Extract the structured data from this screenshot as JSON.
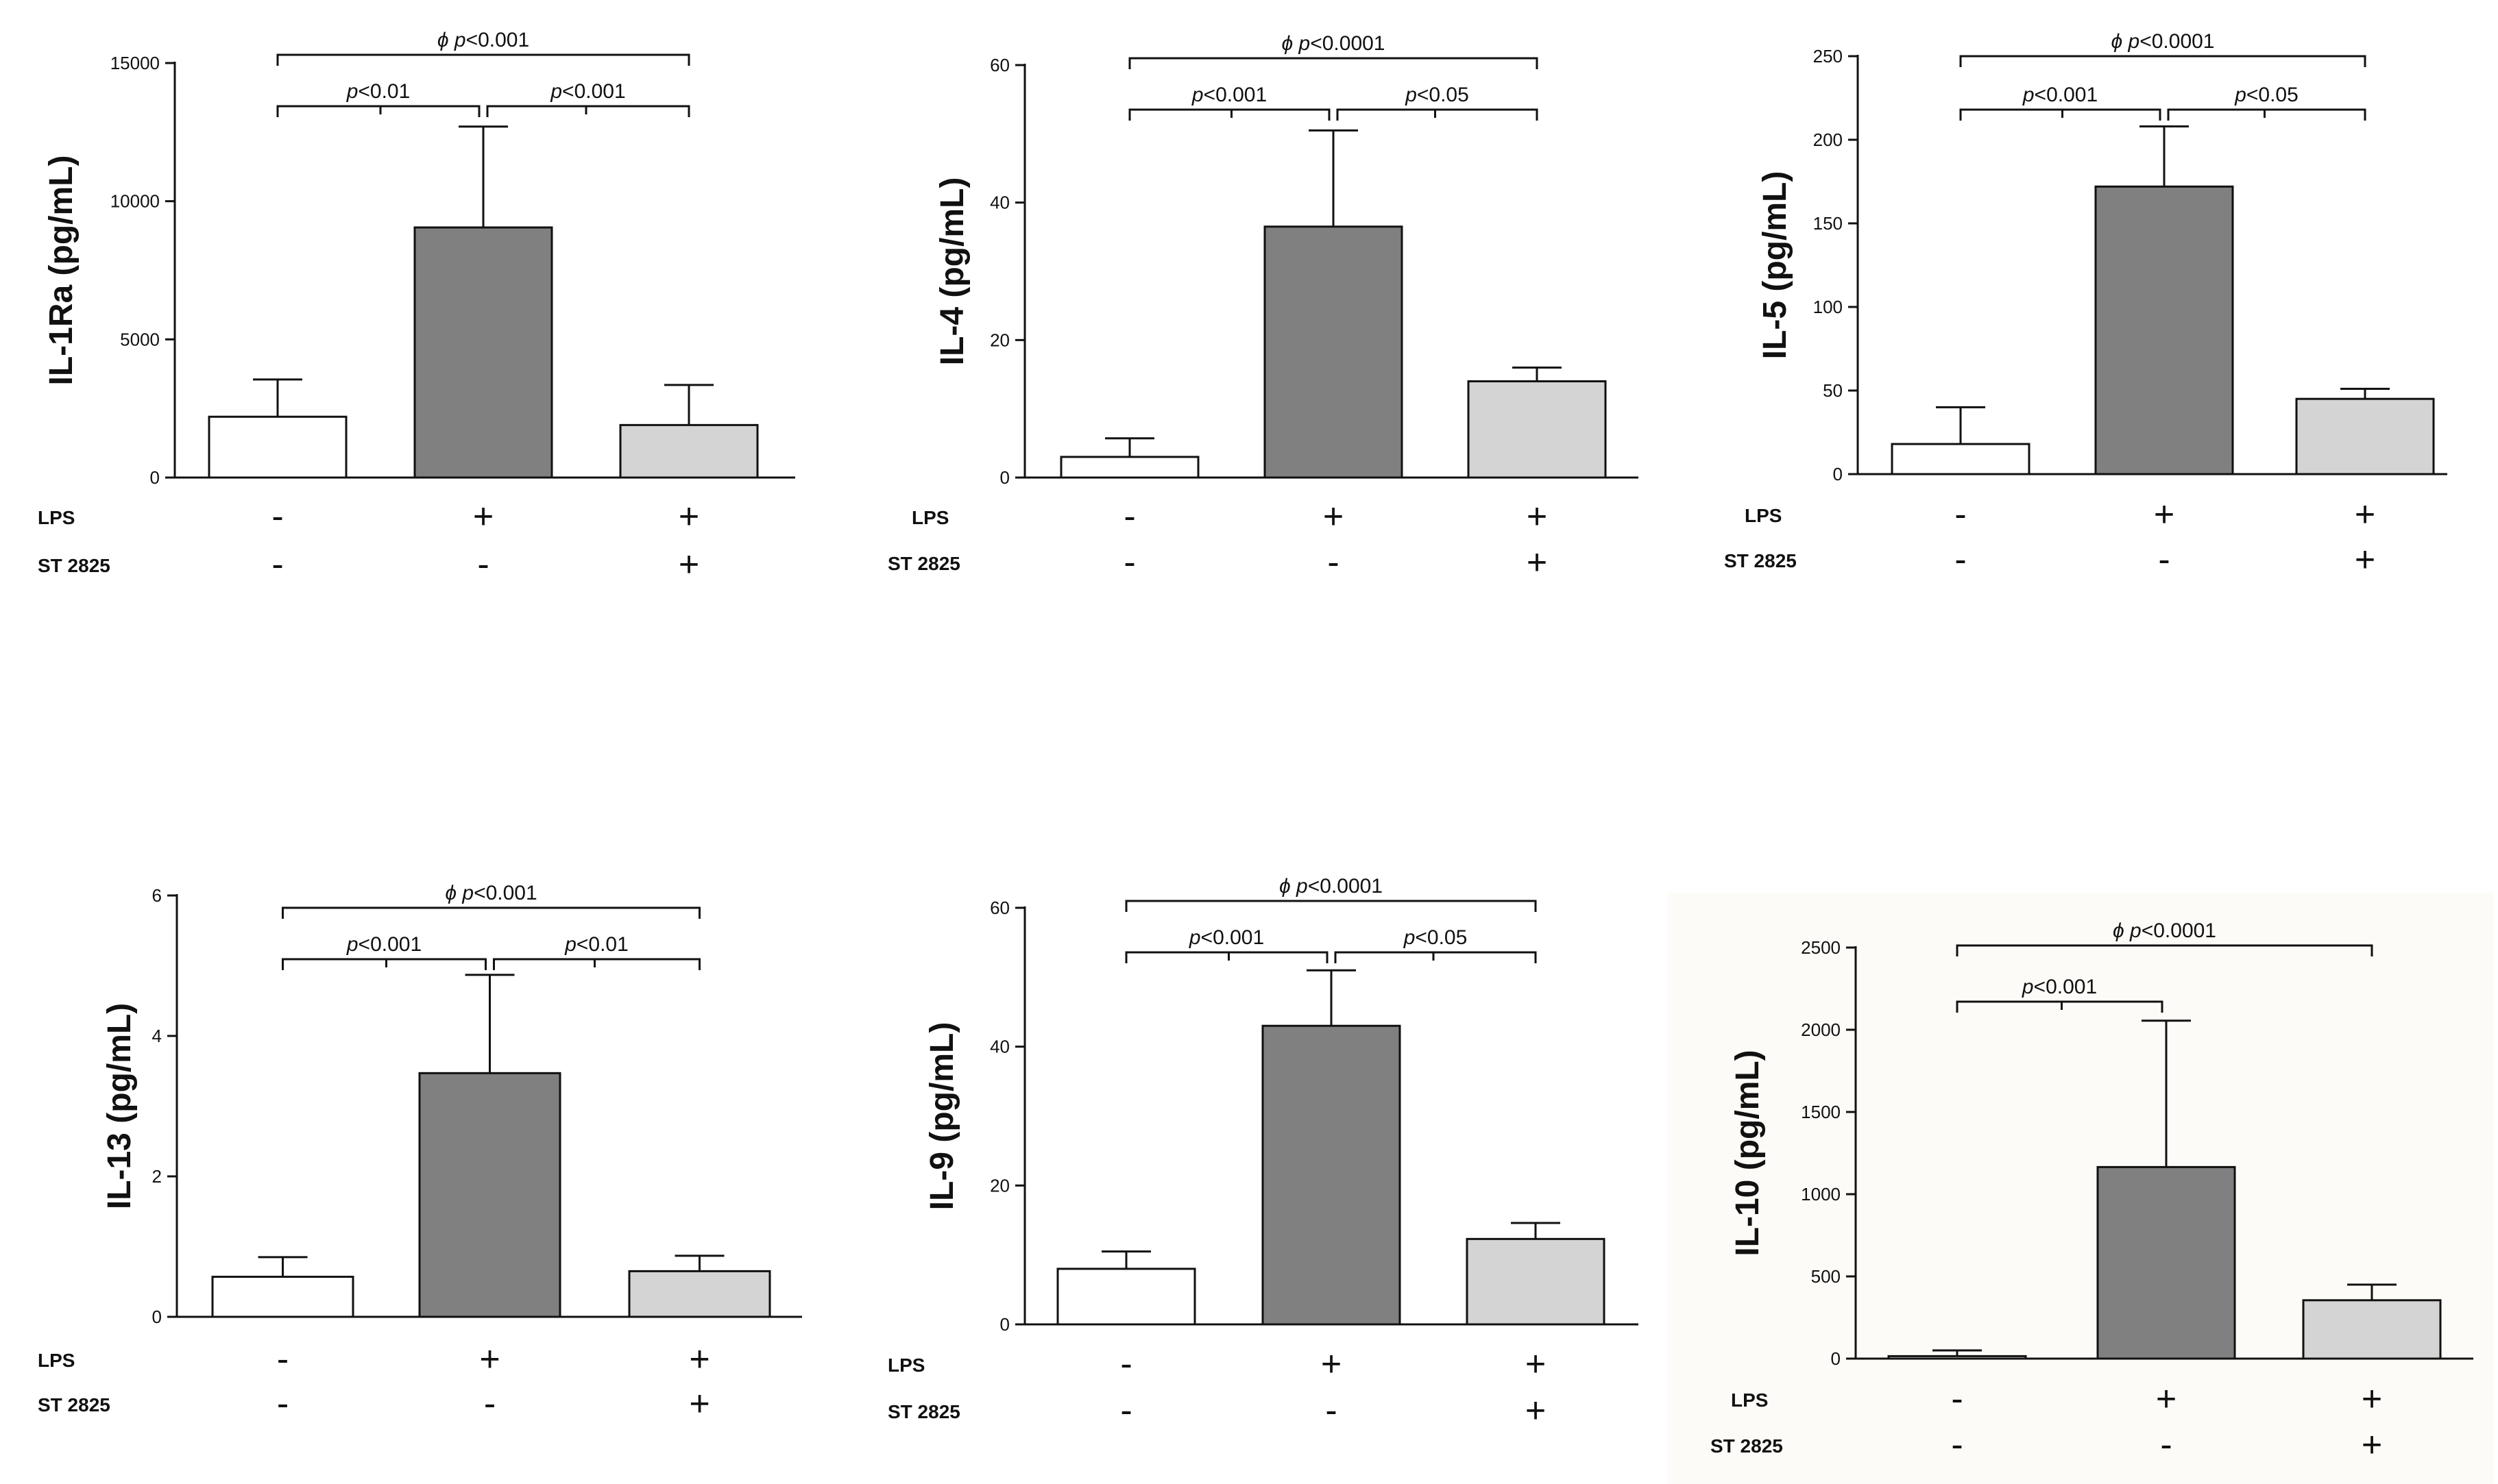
{
  "colors": {
    "control": "#ffffff",
    "lps": "#808080",
    "lps_st2825": "#d4d4d4",
    "stroke": "#111111",
    "panel_bg_shaded": "#fdfbf7"
  },
  "row_labels": {
    "lps": "LPS",
    "st": "ST 2825"
  },
  "chart_data": [
    {
      "type": "bar",
      "id": "il1ra",
      "ylabel": "IL-1Ra (pg/mL)",
      "ylim": [
        0,
        15000
      ],
      "yticks": [
        "0",
        "5000",
        "10000",
        "15000"
      ],
      "ytick_values": [
        0,
        5000,
        10000,
        15000
      ],
      "groups": [
        {
          "lps": "-",
          "st": "-",
          "value": 2200,
          "err": 3550
        },
        {
          "lps": "+",
          "st": "-",
          "value": 9050,
          "err": 12700
        },
        {
          "lps": "+",
          "st": "+",
          "value": 1900,
          "err": 3350
        }
      ],
      "comparisons": [
        {
          "from": 0,
          "to": 2,
          "phi": "ϕ",
          "p": "p",
          "text": "<0.001"
        },
        {
          "from": 0,
          "to": 1,
          "phi": "",
          "p": "p",
          "text": "<0.01"
        },
        {
          "from": 1,
          "to": 2,
          "phi": "",
          "p": "p",
          "text": "<0.001"
        }
      ]
    },
    {
      "type": "bar",
      "id": "il4",
      "ylabel": "IL-4 (pg/mL)",
      "ylim": [
        0,
        60
      ],
      "yticks": [
        "0",
        "20",
        "40",
        "60"
      ],
      "ytick_values": [
        0,
        20,
        40,
        60
      ],
      "groups": [
        {
          "lps": "-",
          "st": "-",
          "value": 3,
          "err": 5.7
        },
        {
          "lps": "+",
          "st": "-",
          "value": 36.5,
          "err": 50.5
        },
        {
          "lps": "+",
          "st": "+",
          "value": 14,
          "err": 16
        }
      ],
      "comparisons": [
        {
          "from": 0,
          "to": 2,
          "phi": "ϕ",
          "p": "p",
          "text": "<0.0001"
        },
        {
          "from": 0,
          "to": 1,
          "phi": "",
          "p": "p",
          "text": "<0.001"
        },
        {
          "from": 1,
          "to": 2,
          "phi": "",
          "p": "p",
          "text": "<0.05"
        }
      ]
    },
    {
      "type": "bar",
      "id": "il5",
      "ylabel": "IL-5 (pg/mL)",
      "ylim": [
        0,
        250
      ],
      "yticks": [
        "0",
        "50",
        "100",
        "150",
        "200",
        "250"
      ],
      "ytick_values": [
        0,
        50,
        100,
        150,
        200,
        250
      ],
      "groups": [
        {
          "lps": "-",
          "st": "-",
          "value": 18,
          "err": 40
        },
        {
          "lps": "+",
          "st": "-",
          "value": 172,
          "err": 208
        },
        {
          "lps": "+",
          "st": "+",
          "value": 45,
          "err": 51
        }
      ],
      "comparisons": [
        {
          "from": 0,
          "to": 2,
          "phi": "ϕ",
          "p": "p",
          "text": "<0.0001"
        },
        {
          "from": 0,
          "to": 1,
          "phi": "",
          "p": "p",
          "text": "<0.001"
        },
        {
          "from": 1,
          "to": 2,
          "phi": "",
          "p": "p",
          "text": "<0.05"
        }
      ]
    },
    {
      "type": "bar",
      "id": "il13",
      "ylabel": "IL-13 (pg/mL)",
      "ylim": [
        0,
        6
      ],
      "yticks": [
        "0",
        "2",
        "4",
        "6"
      ],
      "ytick_values": [
        0,
        2,
        4,
        6
      ],
      "groups": [
        {
          "lps": "-",
          "st": "-",
          "value": 0.57,
          "err": 0.85
        },
        {
          "lps": "+",
          "st": "-",
          "value": 3.47,
          "err": 4.87
        },
        {
          "lps": "+",
          "st": "+",
          "value": 0.65,
          "err": 0.87
        }
      ],
      "comparisons": [
        {
          "from": 0,
          "to": 2,
          "phi": "ϕ",
          "p": "p",
          "text": "<0.001"
        },
        {
          "from": 0,
          "to": 1,
          "phi": "",
          "p": "p",
          "text": "<0.001"
        },
        {
          "from": 1,
          "to": 2,
          "phi": "",
          "p": "p",
          "text": "<0.01"
        }
      ]
    },
    {
      "type": "bar",
      "id": "il9",
      "ylabel": "IL-9 (pg/mL)",
      "ylim": [
        0,
        60
      ],
      "yticks": [
        "0",
        "20",
        "40",
        "60"
      ],
      "ytick_values": [
        0,
        20,
        40,
        60
      ],
      "groups": [
        {
          "lps": "-",
          "st": "-",
          "value": 8,
          "err": 10.5
        },
        {
          "lps": "+",
          "st": "-",
          "value": 43,
          "err": 51
        },
        {
          "lps": "+",
          "st": "+",
          "value": 12.3,
          "err": 14.6
        }
      ],
      "comparisons": [
        {
          "from": 0,
          "to": 2,
          "phi": "ϕ",
          "p": "p",
          "text": "<0.0001"
        },
        {
          "from": 0,
          "to": 1,
          "phi": "",
          "p": "p",
          "text": "<0.001"
        },
        {
          "from": 1,
          "to": 2,
          "phi": "",
          "p": "p",
          "text": "<0.05"
        }
      ]
    },
    {
      "type": "bar",
      "id": "il10",
      "ylabel": "IL-10 (pg/mL)",
      "ylim": [
        0,
        2500
      ],
      "yticks": [
        "0",
        "500",
        "1000",
        "1500",
        "2000",
        "2500"
      ],
      "ytick_values": [
        0,
        500,
        1000,
        1500,
        2000,
        2500
      ],
      "groups": [
        {
          "lps": "-",
          "st": "-",
          "value": 15,
          "err": 50
        },
        {
          "lps": "+",
          "st": "-",
          "value": 1165,
          "err": 2055
        },
        {
          "lps": "+",
          "st": "+",
          "value": 355,
          "err": 450
        }
      ],
      "comparisons": [
        {
          "from": 0,
          "to": 2,
          "phi": "ϕ",
          "p": "p",
          "text": "<0.0001"
        },
        {
          "from": 0,
          "to": 1,
          "phi": "",
          "p": "p",
          "text": "<0.001"
        }
      ]
    }
  ]
}
